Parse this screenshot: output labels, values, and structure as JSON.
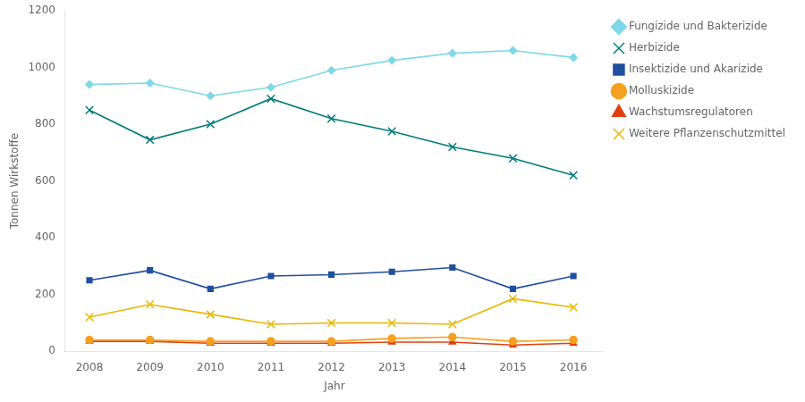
{
  "chart_data": {
    "type": "line",
    "xlabel": "Jahr",
    "ylabel": "Tonnen Wirkstoffe",
    "x": [
      2008,
      2009,
      2010,
      2011,
      2012,
      2013,
      2014,
      2015,
      2016
    ],
    "series": [
      {
        "name": "Fungizide und Bakterizide",
        "color": "#7dd8e8",
        "marker": "diamond",
        "values": [
          940,
          945,
          900,
          930,
          990,
          1025,
          1050,
          1060,
          1035
        ]
      },
      {
        "name": "Herbizide",
        "color": "#007b7b",
        "marker": "x",
        "values": [
          850,
          745,
          800,
          890,
          820,
          775,
          720,
          680,
          620
        ]
      },
      {
        "name": "Insektizide und Akarizide",
        "color": "#1f4f9f",
        "marker": "square",
        "values": [
          250,
          285,
          220,
          265,
          270,
          280,
          295,
          220,
          265
        ]
      },
      {
        "name": "Molluskizide",
        "color": "#f5a020",
        "marker": "circle",
        "values": [
          40,
          40,
          35,
          35,
          35,
          45,
          50,
          35,
          40
        ]
      },
      {
        "name": "Wachstumsregulatoren",
        "color": "#e04010",
        "marker": "triangle",
        "values": [
          35,
          35,
          28,
          28,
          28,
          32,
          32,
          22,
          28
        ]
      },
      {
        "name": "Weitere Pflanzenschutzmittel",
        "color": "#e8b800",
        "marker": "x",
        "values": [
          120,
          165,
          130,
          95,
          100,
          100,
          95,
          185,
          155
        ]
      }
    ],
    "xlim": [
      2007.6,
      2016.5
    ],
    "xticks": [
      2008,
      2009,
      2010,
      2011,
      2012,
      2013,
      2014,
      2015,
      2016
    ],
    "ylim": [
      0,
      1200
    ],
    "yticks": [
      0,
      200,
      400,
      600,
      800,
      1000,
      1200
    ],
    "grid": false,
    "legend": "right"
  }
}
